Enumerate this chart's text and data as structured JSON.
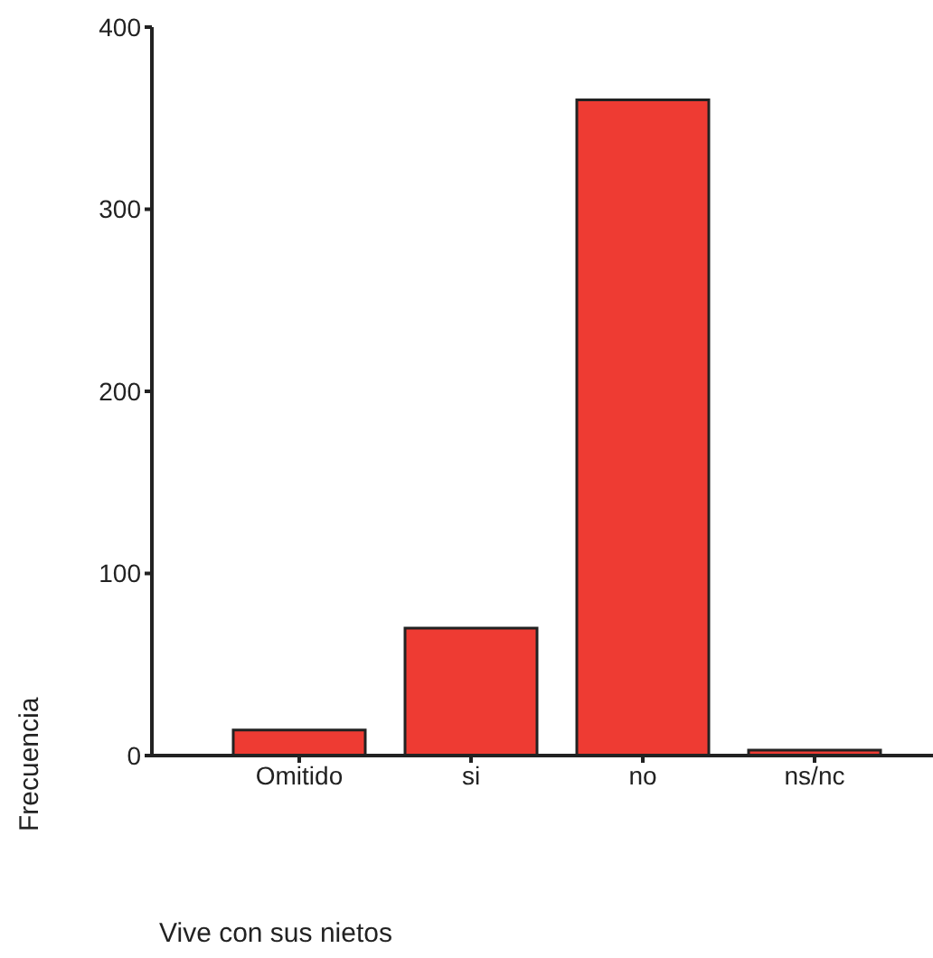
{
  "chart_data": {
    "type": "bar",
    "xlabel": "Vive con sus nietos",
    "ylabel": "Frecuencia",
    "categories": [
      "Omitido",
      "si",
      "no",
      "ns/nc"
    ],
    "values": [
      14,
      70,
      360,
      3
    ],
    "color": "#ee3b33",
    "ylim": [
      0,
      400
    ],
    "yticks": [
      0,
      100,
      200,
      300,
      400
    ],
    "grid": false
  }
}
